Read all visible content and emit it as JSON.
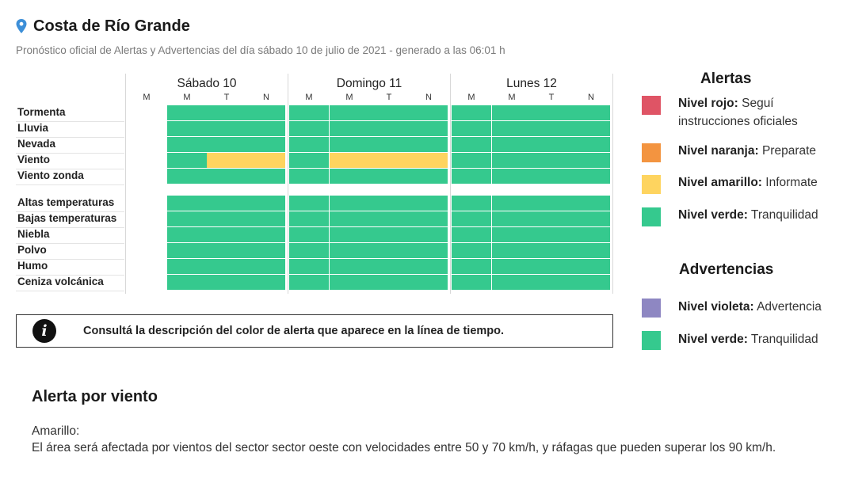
{
  "header": {
    "title": "Costa de Río Grande",
    "subtitle": "Pronóstico oficial de Alertas y Advertencias del día sábado 10 de julio de 2021 - generado a las 06:01 h"
  },
  "colors": {
    "verde": "#35c98e",
    "amarillo": "#fed45f",
    "naranja": "#f39440",
    "rojo": "#df5465",
    "violeta": "#8e87c2"
  },
  "timeline": {
    "days": [
      {
        "label": "Sábado 10",
        "periods": [
          "M",
          "M",
          "T",
          "N"
        ]
      },
      {
        "label": "Domingo 11",
        "periods": [
          "M",
          "M",
          "T",
          "N"
        ]
      },
      {
        "label": "Lunes 12",
        "periods": [
          "M",
          "M",
          "T",
          "N"
        ]
      }
    ],
    "rows": [
      {
        "label": "Tormenta",
        "levels": [
          null,
          "verde",
          "verde",
          "verde",
          "verde",
          "verde",
          "verde",
          "verde",
          "verde",
          "verde",
          "verde",
          "verde"
        ]
      },
      {
        "label": "Lluvia",
        "levels": [
          null,
          "verde",
          "verde",
          "verde",
          "verde",
          "verde",
          "verde",
          "verde",
          "verde",
          "verde",
          "verde",
          "verde"
        ]
      },
      {
        "label": "Nevada",
        "levels": [
          null,
          "verde",
          "verde",
          "verde",
          "verde",
          "verde",
          "verde",
          "verde",
          "verde",
          "verde",
          "verde",
          "verde"
        ]
      },
      {
        "label": "Viento",
        "levels": [
          null,
          "verde",
          "amarillo",
          "amarillo",
          "verde",
          "amarillo",
          "amarillo",
          "amarillo",
          "verde",
          "verde",
          "verde",
          "verde"
        ]
      },
      {
        "label": "Viento zonda",
        "levels": [
          null,
          "verde",
          "verde",
          "verde",
          "verde",
          "verde",
          "verde",
          "verde",
          "verde",
          "verde",
          "verde",
          "verde"
        ]
      },
      {
        "label": "Altas temperaturas",
        "levels": [
          null,
          "verde",
          "verde",
          "verde",
          "verde",
          "verde",
          "verde",
          "verde",
          "verde",
          "verde",
          "verde",
          "verde"
        ]
      },
      {
        "label": "Bajas temperaturas",
        "levels": [
          null,
          "verde",
          "verde",
          "verde",
          "verde",
          "verde",
          "verde",
          "verde",
          "verde",
          "verde",
          "verde",
          "verde"
        ]
      },
      {
        "label": "Niebla",
        "levels": [
          null,
          "verde",
          "verde",
          "verde",
          "verde",
          "verde",
          "verde",
          "verde",
          "verde",
          "verde",
          "verde",
          "verde"
        ]
      },
      {
        "label": "Polvo",
        "levels": [
          null,
          "verde",
          "verde",
          "verde",
          "verde",
          "verde",
          "verde",
          "verde",
          "verde",
          "verde",
          "verde",
          "verde"
        ]
      },
      {
        "label": "Humo",
        "levels": [
          null,
          "verde",
          "verde",
          "verde",
          "verde",
          "verde",
          "verde",
          "verde",
          "verde",
          "verde",
          "verde",
          "verde"
        ]
      },
      {
        "label": "Ceniza volcánica",
        "levels": [
          null,
          "verde",
          "verde",
          "verde",
          "verde",
          "verde",
          "verde",
          "verde",
          "verde",
          "verde",
          "verde",
          "verde"
        ]
      }
    ]
  },
  "notice": {
    "icon": "info-icon",
    "text": "Consultá la descripción del color de alerta que aparece en la línea de tiempo."
  },
  "legend": {
    "alertas_title": "Alertas",
    "alertas": [
      {
        "color": "rojo",
        "name": "Nivel rojo:",
        "desc": "Seguí instrucciones oficiales"
      },
      {
        "color": "naranja",
        "name": "Nivel naranja:",
        "desc": "Preparate"
      },
      {
        "color": "amarillo",
        "name": "Nivel amarillo:",
        "desc": "Informate"
      },
      {
        "color": "verde",
        "name": "Nivel verde:",
        "desc": "Tranquilidad"
      }
    ],
    "advertencias_title": "Advertencias",
    "advertencias": [
      {
        "color": "violeta",
        "name": "Nivel violeta:",
        "desc": "Advertencia"
      },
      {
        "color": "verde",
        "name": "Nivel verde:",
        "desc": "Tranquilidad"
      }
    ]
  },
  "detail": {
    "title": "Alerta por viento",
    "level": "Amarillo:",
    "text": "El área será afectada por vientos del sector sector oeste con velocidades entre 50 y 70 km/h, y ráfagas que pueden superar los 90 km/h."
  }
}
